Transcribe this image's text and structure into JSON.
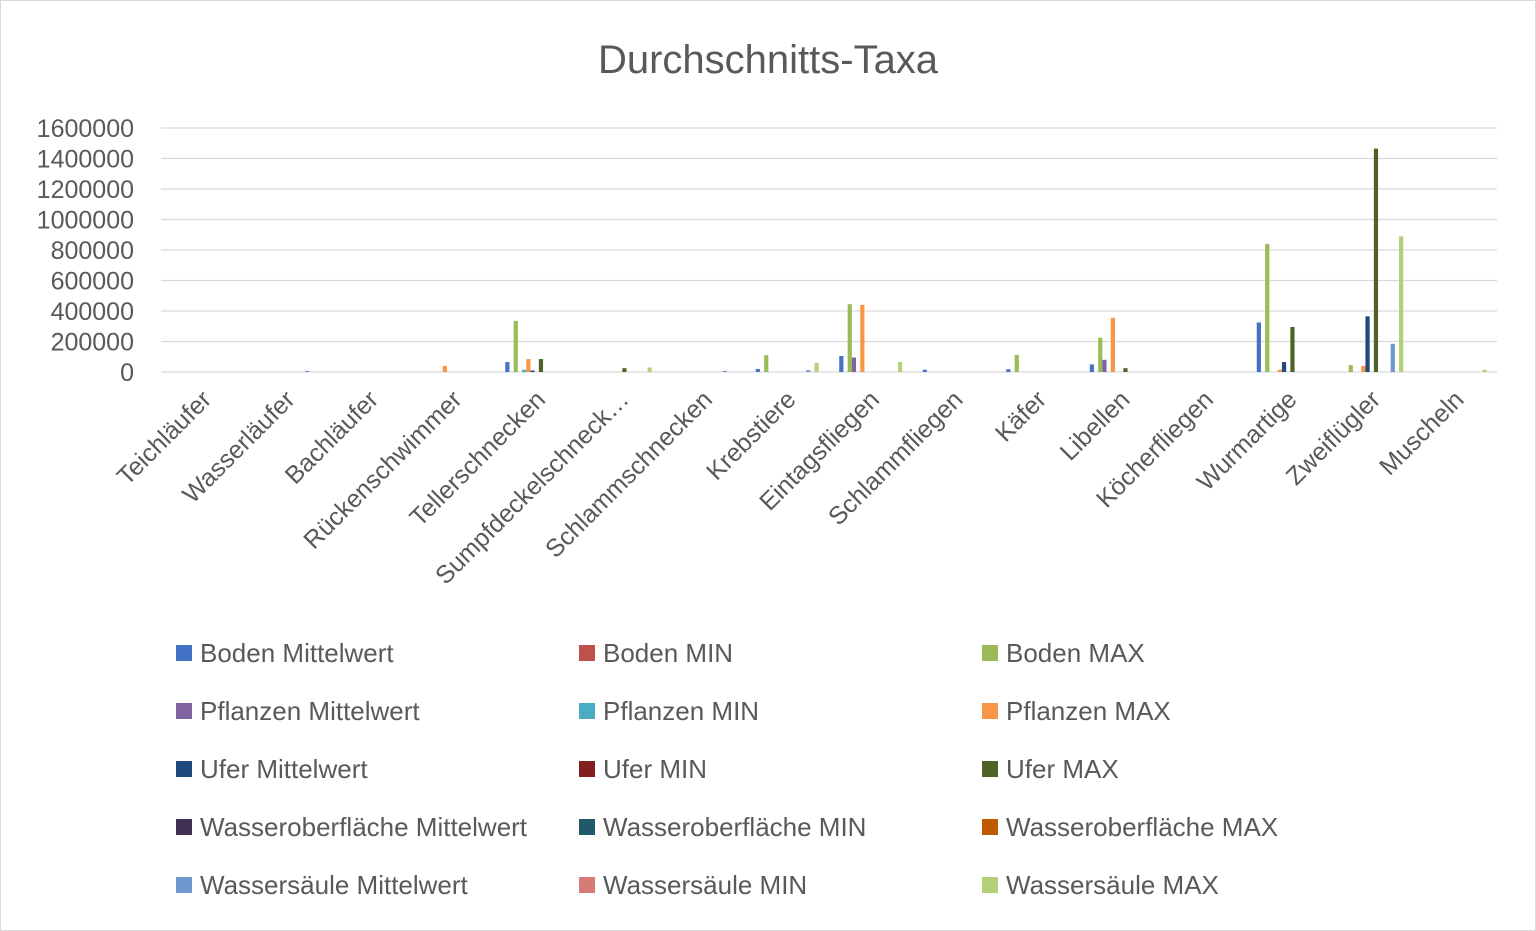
{
  "chart_data": {
    "type": "bar",
    "title": "Durchschnitts-Taxa",
    "xlabel": "",
    "ylabel": "",
    "ylim": [
      0,
      1600000
    ],
    "yticks": [
      0,
      200000,
      400000,
      600000,
      800000,
      1000000,
      1200000,
      1400000,
      1600000
    ],
    "ytick_labels": [
      "0",
      "200000",
      "400000",
      "600000",
      "800000",
      "1000000",
      "1200000",
      "1400000",
      "1600000"
    ],
    "grid": true,
    "legend_position": "bottom",
    "categories": [
      "Teichläufer",
      "Wasserläufer",
      "Bachläufer",
      "Rückenschwimmer",
      "Tellerschnecken",
      "Sumpfdeckelschneck…",
      "Schlammschnecken",
      "Krebstiere",
      "Eintagsfliegen",
      "Schlammfliegen",
      "Käfer",
      "Libellen",
      "Köcherfliegen",
      "Wurmartige",
      "Zweiflügler",
      "Muscheln"
    ],
    "series": [
      {
        "name": "Boden Mittelwert",
        "color": "#4472c4",
        "values": [
          0,
          0,
          0,
          0,
          65000,
          0,
          0,
          20000,
          105000,
          15000,
          18000,
          50000,
          0,
          325000,
          0,
          0
        ]
      },
      {
        "name": "Boden MIN",
        "color": "#c0504d",
        "values": [
          0,
          0,
          0,
          0,
          0,
          0,
          0,
          0,
          0,
          0,
          0,
          0,
          0,
          0,
          0,
          0
        ]
      },
      {
        "name": "Boden MAX",
        "color": "#9bbb59",
        "values": [
          0,
          0,
          0,
          0,
          335000,
          0,
          0,
          110000,
          445000,
          0,
          112000,
          225000,
          0,
          840000,
          45000,
          0
        ]
      },
      {
        "name": "Pflanzen Mittelwert",
        "color": "#8064a2",
        "values": [
          0,
          0,
          0,
          0,
          0,
          0,
          0,
          0,
          95000,
          0,
          0,
          80000,
          0,
          0,
          0,
          0
        ]
      },
      {
        "name": "Pflanzen MIN",
        "color": "#4bacc6",
        "values": [
          0,
          0,
          0,
          0,
          15000,
          0,
          0,
          0,
          0,
          0,
          0,
          0,
          0,
          0,
          0,
          0
        ]
      },
      {
        "name": "Pflanzen MAX",
        "color": "#f79646",
        "values": [
          0,
          0,
          0,
          40000,
          85000,
          0,
          0,
          0,
          440000,
          0,
          0,
          355000,
          0,
          15000,
          40000,
          0
        ]
      },
      {
        "name": "Ufer Mittelwert",
        "color": "#1f497d",
        "values": [
          0,
          0,
          0,
          0,
          10000,
          0,
          0,
          0,
          0,
          0,
          0,
          0,
          0,
          65000,
          365000,
          0
        ]
      },
      {
        "name": "Ufer MIN",
        "color": "#7f1f1f",
        "values": [
          0,
          0,
          0,
          0,
          0,
          0,
          0,
          0,
          0,
          0,
          0,
          0,
          0,
          0,
          0,
          0
        ]
      },
      {
        "name": "Ufer MAX",
        "color": "#4f6228",
        "values": [
          0,
          0,
          0,
          0,
          85000,
          25000,
          0,
          0,
          0,
          0,
          0,
          25000,
          0,
          295000,
          1465000,
          0
        ]
      },
      {
        "name": "Wasseroberfläche Mittelwert",
        "color": "#3f3151",
        "values": [
          0,
          0,
          0,
          0,
          0,
          0,
          0,
          0,
          0,
          0,
          0,
          0,
          0,
          0,
          0,
          0
        ]
      },
      {
        "name": "Wasseroberfläche MIN",
        "color": "#215968",
        "values": [
          0,
          0,
          0,
          0,
          0,
          0,
          0,
          0,
          0,
          0,
          0,
          0,
          0,
          0,
          0,
          0
        ]
      },
      {
        "name": "Wasseroberfläche MAX",
        "color": "#c05a00",
        "values": [
          0,
          0,
          0,
          0,
          0,
          0,
          0,
          0,
          0,
          0,
          0,
          0,
          0,
          0,
          0,
          0
        ]
      },
      {
        "name": "Wassersäule Mittelwert",
        "color": "#6f97cd",
        "values": [
          0,
          8000,
          0,
          0,
          0,
          0,
          8000,
          12000,
          0,
          0,
          0,
          0,
          0,
          0,
          185000,
          0
        ]
      },
      {
        "name": "Wassersäule MIN",
        "color": "#d77b78",
        "values": [
          0,
          0,
          0,
          0,
          0,
          0,
          0,
          0,
          0,
          0,
          0,
          0,
          0,
          0,
          0,
          0
        ]
      },
      {
        "name": "Wassersäule MAX",
        "color": "#b3d07a",
        "values": [
          0,
          0,
          0,
          0,
          0,
          30000,
          0,
          60000,
          65000,
          0,
          0,
          0,
          0,
          0,
          890000,
          15000
        ]
      }
    ]
  }
}
